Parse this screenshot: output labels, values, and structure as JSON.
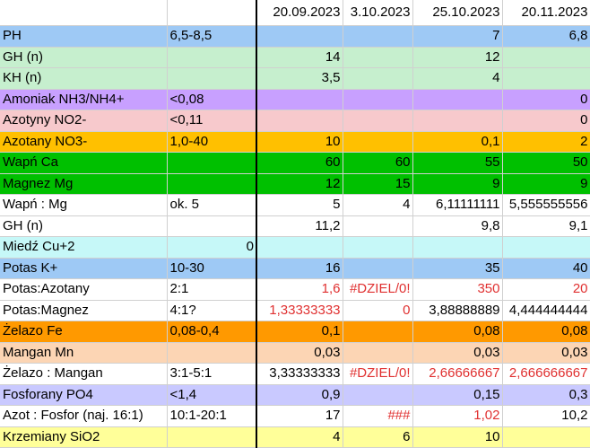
{
  "header": [
    "",
    "",
    "20.09.2023",
    "3.10.2023",
    "25.10.2023",
    "20.11.2023"
  ],
  "rows": [
    {
      "color": "c-blue",
      "cells": [
        "PH",
        "6,5-8,5",
        "",
        "",
        "7",
        "6,8"
      ]
    },
    {
      "color": "c-lgreen",
      "cells": [
        "GH (n)",
        "",
        "14",
        "",
        "12",
        ""
      ]
    },
    {
      "color": "c-lgreen",
      "cells": [
        "KH (n)",
        "",
        "3,5",
        "",
        "4",
        ""
      ]
    },
    {
      "color": "c-purple",
      "cells": [
        "Amoniak NH3/NH4+",
        "<0,08",
        "",
        "",
        "",
        "0"
      ]
    },
    {
      "color": "c-pink",
      "cells": [
        "Azotyny NO2-",
        "<0,11",
        "",
        "",
        "",
        "0"
      ]
    },
    {
      "color": "c-orange",
      "cells": [
        "Azotany NO3-",
        "1,0-40",
        "10",
        "",
        "0,1",
        "2"
      ]
    },
    {
      "color": "c-green",
      "cells": [
        "Wapń Ca",
        "",
        "60",
        "60",
        "55",
        "50"
      ]
    },
    {
      "color": "c-green",
      "cells": [
        "Magnez Mg",
        "",
        "12",
        "15",
        "9",
        "9"
      ]
    },
    {
      "color": "c-white",
      "cells": [
        "Wapń : Mg",
        "ok. 5",
        "5",
        "4",
        "6,11111111",
        "5,555555556"
      ]
    },
    {
      "color": "c-white",
      "cells": [
        "GH (n)",
        "",
        "11,2",
        "",
        "9,8",
        "9,1"
      ]
    },
    {
      "color": "c-cyan",
      "cells": [
        "Miedź Cu+2",
        "0",
        "",
        "",
        "",
        ""
      ]
    },
    {
      "color": "c-blue",
      "cells": [
        "Potas K+",
        "10-30",
        "16",
        "",
        "35",
        "40"
      ]
    },
    {
      "color": "c-white",
      "cells": [
        "Potas:Azotany",
        "2:1",
        "1,6",
        "#DZIEL/0!",
        "350",
        "20"
      ]
    },
    {
      "color": "c-white",
      "cells": [
        "Potas:Magnez",
        "4:1?",
        "1,33333333",
        "0",
        "3,88888889",
        "4,444444444"
      ]
    },
    {
      "color": "c-dorange",
      "cells": [
        "Żelazo Fe",
        "0,08-0,4",
        "0,1",
        "",
        "0,08",
        "0,08"
      ]
    },
    {
      "color": "c-peach",
      "cells": [
        "Mangan Mn",
        "",
        "0,03",
        "",
        "0,03",
        "0,03"
      ]
    },
    {
      "color": "c-white",
      "cells": [
        "Żelazo : Mangan",
        "3:1-5:1",
        "3,33333333",
        "#DZIEL/0!",
        "2,66666667",
        "2,666666667"
      ]
    },
    {
      "color": "c-lav",
      "cells": [
        "Fosforany PO4",
        "<1,4",
        "0,9",
        "",
        "0,15",
        "0,3"
      ]
    },
    {
      "color": "c-white",
      "cells": [
        " Azot : Fosfor (naj. 16:1)",
        "10:1-20:1",
        "17",
        "###",
        "1,02",
        "10,2"
      ]
    },
    {
      "color": "c-yellow",
      "cells": [
        "Krzemiany SiO2",
        "",
        "4",
        "6",
        "10",
        ""
      ]
    }
  ],
  "red_cells": [
    [
      12,
      2
    ],
    [
      12,
      3
    ],
    [
      12,
      4
    ],
    [
      12,
      5
    ],
    [
      13,
      2
    ],
    [
      13,
      3
    ],
    [
      16,
      3
    ],
    [
      16,
      4
    ],
    [
      16,
      5
    ],
    [
      18,
      3
    ],
    [
      18,
      4
    ]
  ]
}
